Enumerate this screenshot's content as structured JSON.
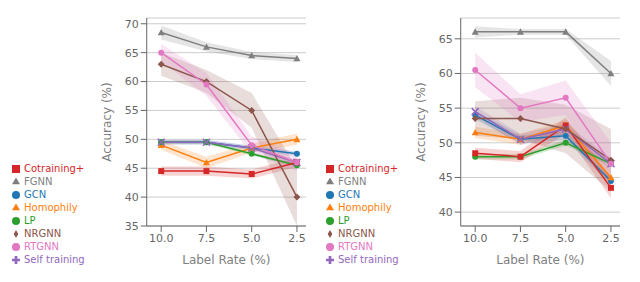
{
  "chart_data": [
    {
      "type": "line",
      "x_label": "Label Rate (%)",
      "y_label": "Accuracy (%)",
      "x": [
        10.0,
        7.5,
        5.0,
        2.5
      ],
      "xlim": [
        10.8,
        2.0
      ],
      "xticks": [
        {
          "value": 10.0,
          "label": "10.0"
        },
        7.5,
        {
          "value": 5.0,
          "label": "5.0"
        },
        2.5
      ],
      "ylim": [
        35,
        71
      ],
      "yticks": [
        35,
        40,
        45,
        50,
        55,
        60,
        65,
        70
      ],
      "grid": "y",
      "legend": "lower left",
      "series": [
        {
          "name": "GCN",
          "color": "#1f77b4",
          "marker": "circle",
          "values": [
            49.5,
            49.5,
            48.5,
            47.5
          ],
          "std": [
            0.4,
            0.4,
            0.4,
            0.4
          ]
        },
        {
          "name": "Homophily",
          "color": "#ff7f0e",
          "marker": "triangle",
          "values": [
            49.0,
            46.0,
            48.5,
            50.0
          ],
          "std": [
            0.8,
            1.0,
            0.8,
            1.0
          ]
        },
        {
          "name": "LP",
          "color": "#2ca02c",
          "marker": "circle",
          "values": [
            49.5,
            49.5,
            47.5,
            45.5
          ],
          "std": [
            0.3,
            0.3,
            0.3,
            0.3
          ]
        },
        {
          "name": "Cotraining+",
          "color": "#d62728",
          "marker": "square",
          "values": [
            44.5,
            44.5,
            44.0,
            46.0
          ],
          "std": [
            0.8,
            0.8,
            0.8,
            0.8
          ]
        },
        {
          "name": "Self training",
          "color": "#9467bd",
          "marker": "cross",
          "values": [
            49.5,
            49.5,
            48.5,
            46.0
          ],
          "std": [
            0.4,
            0.4,
            0.4,
            0.4
          ]
        },
        {
          "name": "NRGNN",
          "color": "#8c564b",
          "marker": "diamond",
          "values": [
            63.0,
            60.0,
            55.0,
            40.0
          ],
          "std": [
            2.0,
            2.0,
            3.0,
            5.0
          ]
        },
        {
          "name": "RTGNN",
          "color": "#e377c2",
          "marker": "circle",
          "values": [
            65.0,
            59.5,
            49.0,
            46.0
          ],
          "std": [
            1.5,
            2.0,
            1.5,
            1.5
          ]
        },
        {
          "name": "FGNN",
          "color": "#7f7f7f",
          "marker": "triangle",
          "values": [
            68.5,
            66.0,
            64.5,
            64.0
          ],
          "std": [
            1.2,
            0.8,
            0.6,
            0.6
          ]
        }
      ]
    },
    {
      "type": "line",
      "x_label": "Label Rate (%)",
      "y_label": "Accuracy (%)",
      "x": [
        10.0,
        7.5,
        5.0,
        2.5
      ],
      "xlim": [
        10.8,
        2.0
      ],
      "xticks": [
        {
          "value": 10.0,
          "label": "10.0"
        },
        7.5,
        {
          "value": 5.0,
          "label": "5.0"
        },
        2.5
      ],
      "ylim": [
        38,
        68
      ],
      "yticks": [
        40,
        45,
        50,
        55,
        60,
        65
      ],
      "grid": "y",
      "legend": "lower left",
      "series": [
        {
          "name": "GCN",
          "color": "#1f77b4",
          "marker": "circle",
          "values": [
            54.0,
            50.5,
            51.0,
            44.5
          ],
          "std": [
            0.6,
            0.6,
            0.6,
            0.6
          ]
        },
        {
          "name": "Homophily",
          "color": "#ff7f0e",
          "marker": "triangle",
          "values": [
            51.5,
            50.5,
            52.5,
            45.0
          ],
          "std": [
            0.8,
            0.8,
            0.8,
            1.0
          ]
        },
        {
          "name": "LP",
          "color": "#2ca02c",
          "marker": "circle",
          "values": [
            48.0,
            48.0,
            50.0,
            47.0
          ],
          "std": [
            0.4,
            0.4,
            0.4,
            0.4
          ]
        },
        {
          "name": "Cotraining+",
          "color": "#d62728",
          "marker": "square",
          "values": [
            48.5,
            48.0,
            52.5,
            43.5
          ],
          "std": [
            0.8,
            0.8,
            1.2,
            1.5
          ]
        },
        {
          "name": "Self training",
          "color": "#9467bd",
          "marker": "cross",
          "values": [
            54.5,
            50.5,
            52.0,
            47.0
          ],
          "std": [
            0.8,
            0.8,
            0.8,
            0.8
          ]
        },
        {
          "name": "NRGNN",
          "color": "#8c564b",
          "marker": "diamond",
          "values": [
            53.5,
            53.5,
            52.0,
            47.5
          ],
          "std": [
            2.5,
            3.0,
            3.5,
            4.5
          ]
        },
        {
          "name": "RTGNN",
          "color": "#e377c2",
          "marker": "circle",
          "values": [
            60.5,
            55.0,
            56.5,
            47.0
          ],
          "std": [
            2.5,
            2.0,
            2.5,
            3.0
          ]
        },
        {
          "name": "FGNN",
          "color": "#7f7f7f",
          "marker": "triangle",
          "values": [
            66.0,
            66.0,
            66.0,
            60.0
          ],
          "std": [
            0.8,
            0.4,
            0.4,
            1.8
          ]
        }
      ]
    }
  ]
}
